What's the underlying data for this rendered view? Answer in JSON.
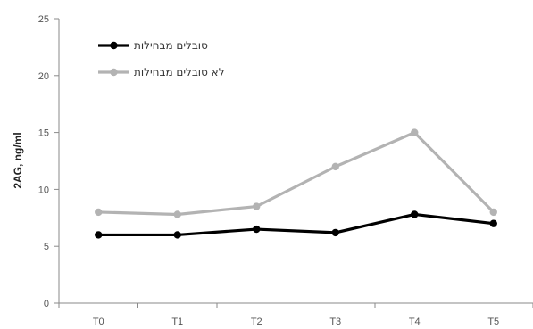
{
  "chart_data": {
    "type": "line",
    "categories": [
      "T0",
      "T1",
      "T2",
      "T3",
      "T4",
      "T5"
    ],
    "ylabel": "2AG, ng/ml",
    "xlabel": "",
    "ylim": [
      0,
      25
    ],
    "yticks": [
      0,
      5,
      10,
      15,
      20,
      25
    ],
    "grid": false,
    "legend_position": "top-left",
    "series": [
      {
        "name": "סובלים מבחילות",
        "color": "#000000",
        "values": [
          6.0,
          6.0,
          6.5,
          6.2,
          7.8,
          7.0
        ]
      },
      {
        "name": "לא סובלים מבחילות",
        "color": "#b3b3b3",
        "values": [
          8.0,
          7.8,
          8.5,
          12.0,
          15.0,
          8.0
        ]
      }
    ]
  }
}
